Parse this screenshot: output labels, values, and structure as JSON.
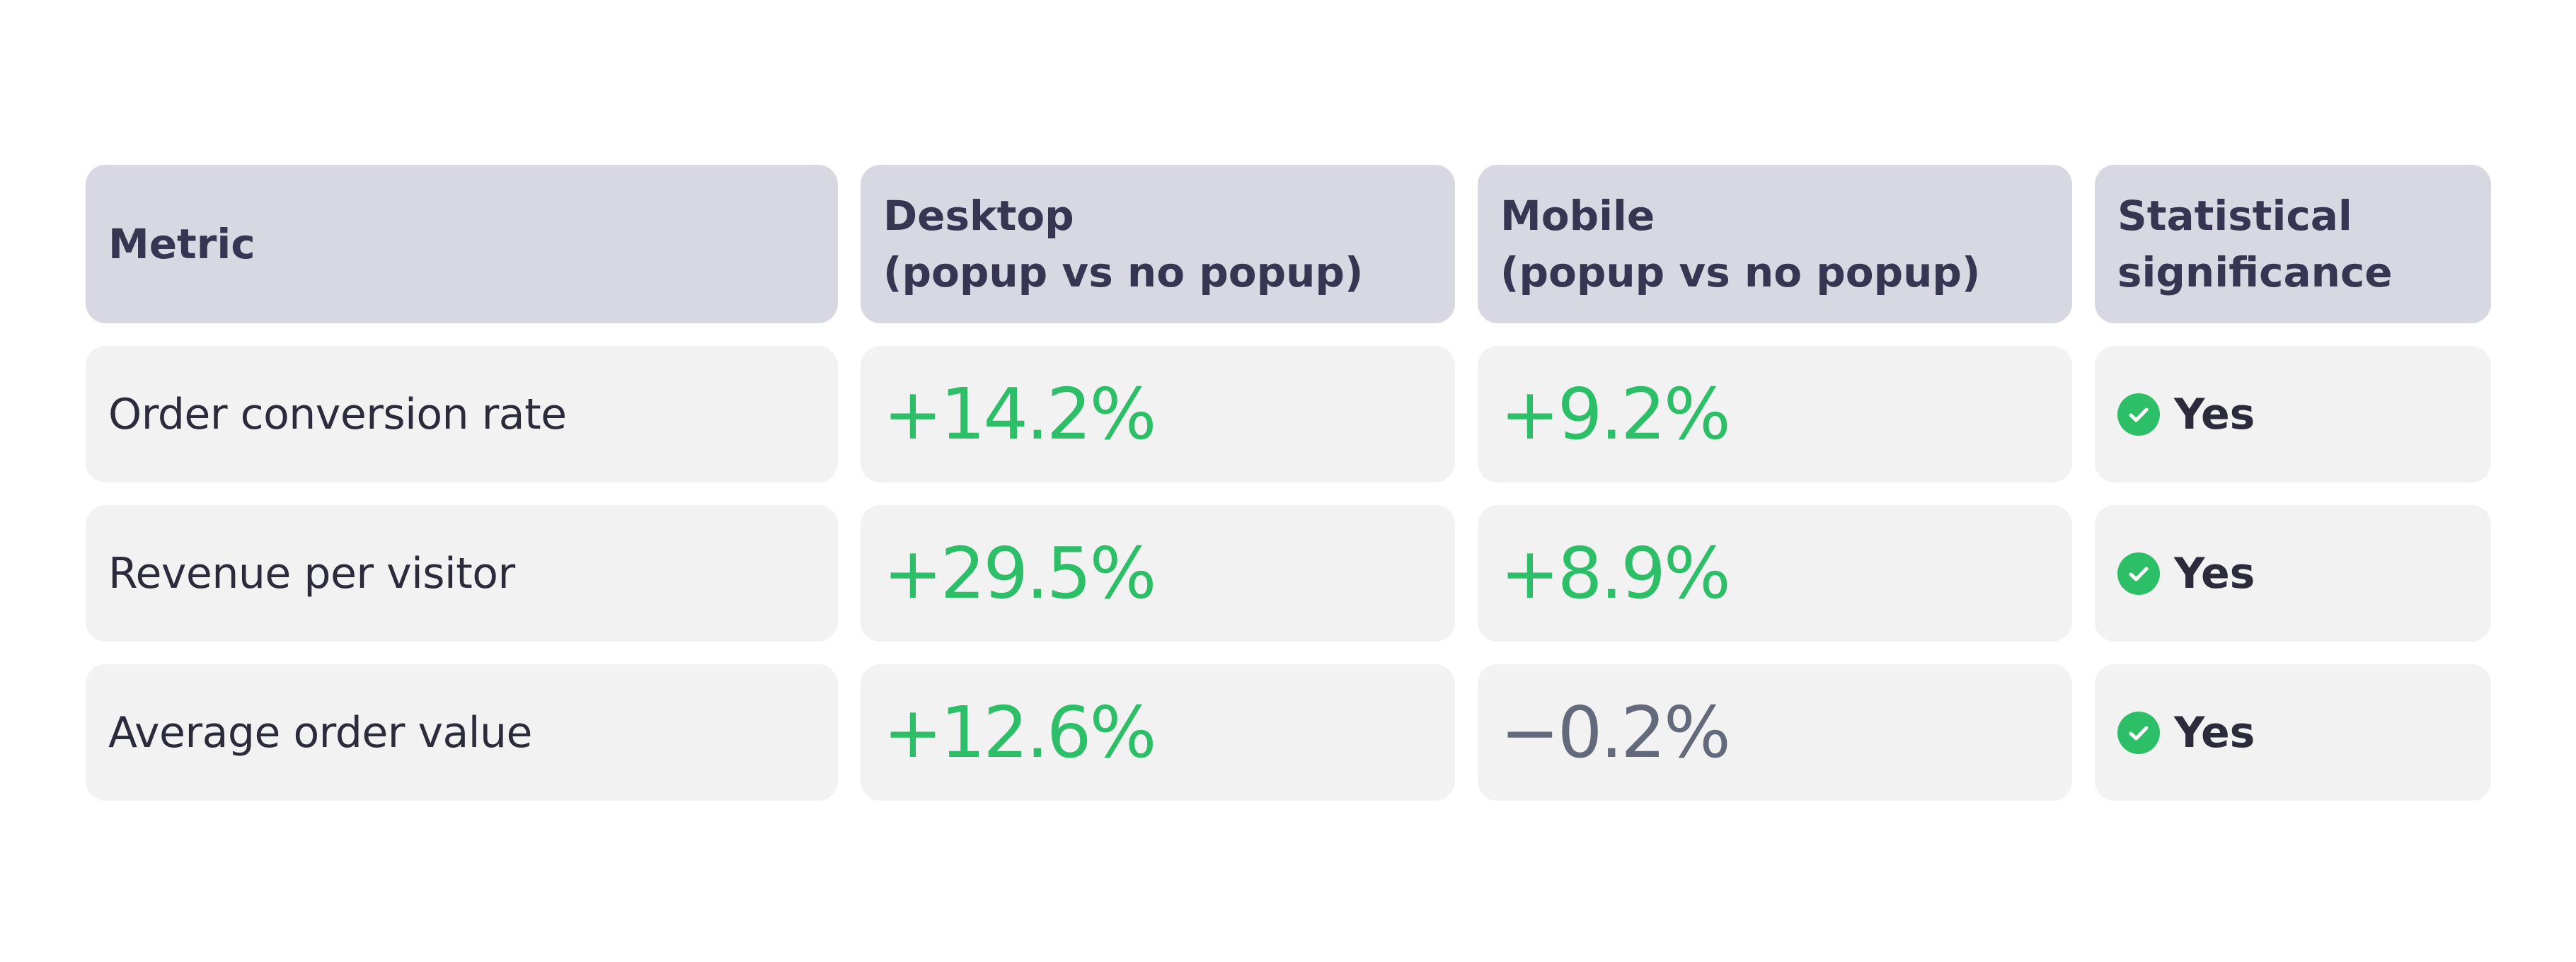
{
  "table": {
    "headers": [
      "Metric",
      "Desktop\n(popup vs no popup)",
      "Mobile\n(popup vs no popup)",
      "Statistical\nsignificance"
    ],
    "rows": [
      {
        "metric": "Order conversion rate",
        "desktop": "+14.2%",
        "mobile": "+9.2%",
        "significance": "Yes"
      },
      {
        "metric": "Revenue per visitor",
        "desktop": "+29.5%",
        "mobile": "+8.9%",
        "significance": "Yes"
      },
      {
        "metric": "Average order value",
        "desktop": "+12.6%",
        "mobile": "−0.2%",
        "significance": "Yes"
      }
    ]
  },
  "colors": {
    "positive": "#2dbf67",
    "negative": "#626a7c",
    "check": "#2dbf67",
    "header_bg": "#d8d8e2",
    "row_bg": "#f2f2f2"
  },
  "icons": {
    "significance": "check-circle-icon"
  }
}
